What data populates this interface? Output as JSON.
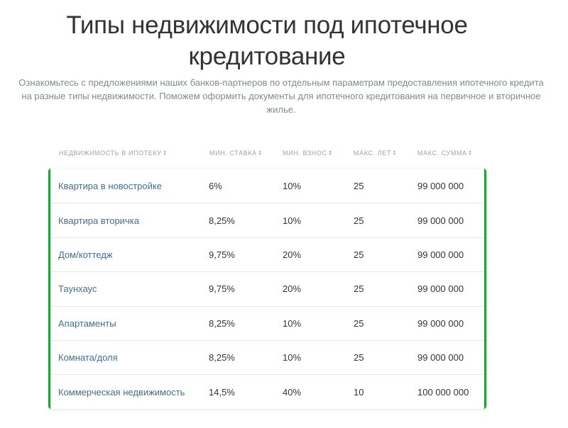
{
  "page": {
    "title": "Типы недвижимости под ипотечное кредитование",
    "intro": "Ознакомьтесь с предложениями наших банков-партнеров по отдельным параметрам предоставления ипотечного кредита на разные типы недвижимости. Поможем оформить документы для ипотечного кредитования на первичное и вторичное жилье."
  },
  "table": {
    "headers": [
      {
        "label": "НЕДВИЖИМОСТЬ В ИПОТЕКУ",
        "icon": "sort-icon"
      },
      {
        "label": "МИН. СТАВКА",
        "icon": "sort-icon"
      },
      {
        "label": "МИН. ВЗНОС",
        "icon": "sort-icon"
      },
      {
        "label": "МАКС. ЛЕТ",
        "icon": "sort-icon"
      },
      {
        "label": "МАКС. СУММА",
        "icon": "sort-icon"
      }
    ],
    "rows": [
      {
        "type": "Квартира в новостройке",
        "rate": "6%",
        "down": "10%",
        "years": "25",
        "sum": "99 000 000"
      },
      {
        "type": "Квартира вторичка",
        "rate": "8,25%",
        "down": "10%",
        "years": "25",
        "sum": "99 000 000"
      },
      {
        "type": "Дом/коттедж",
        "rate": "9,75%",
        "down": "20%",
        "years": "25",
        "sum": "99 000 000"
      },
      {
        "type": "Таунхаус",
        "rate": "9,75%",
        "down": "20%",
        "years": "25",
        "sum": "99 000 000"
      },
      {
        "type": "Апартаменты",
        "rate": "8,25%",
        "down": "10%",
        "years": "25",
        "sum": "99 000 000"
      },
      {
        "type": "Комната/доля",
        "rate": "8,25%",
        "down": "10%",
        "years": "25",
        "sum": "99 000 000"
      },
      {
        "type": "Коммерческая недвижимость",
        "rate": "14,5%",
        "down": "40%",
        "years": "10",
        "sum": "100 000 000"
      }
    ]
  },
  "colors": {
    "accent": "#21a038",
    "link": "#3f6f8f",
    "muted": "#7f8c8d"
  }
}
